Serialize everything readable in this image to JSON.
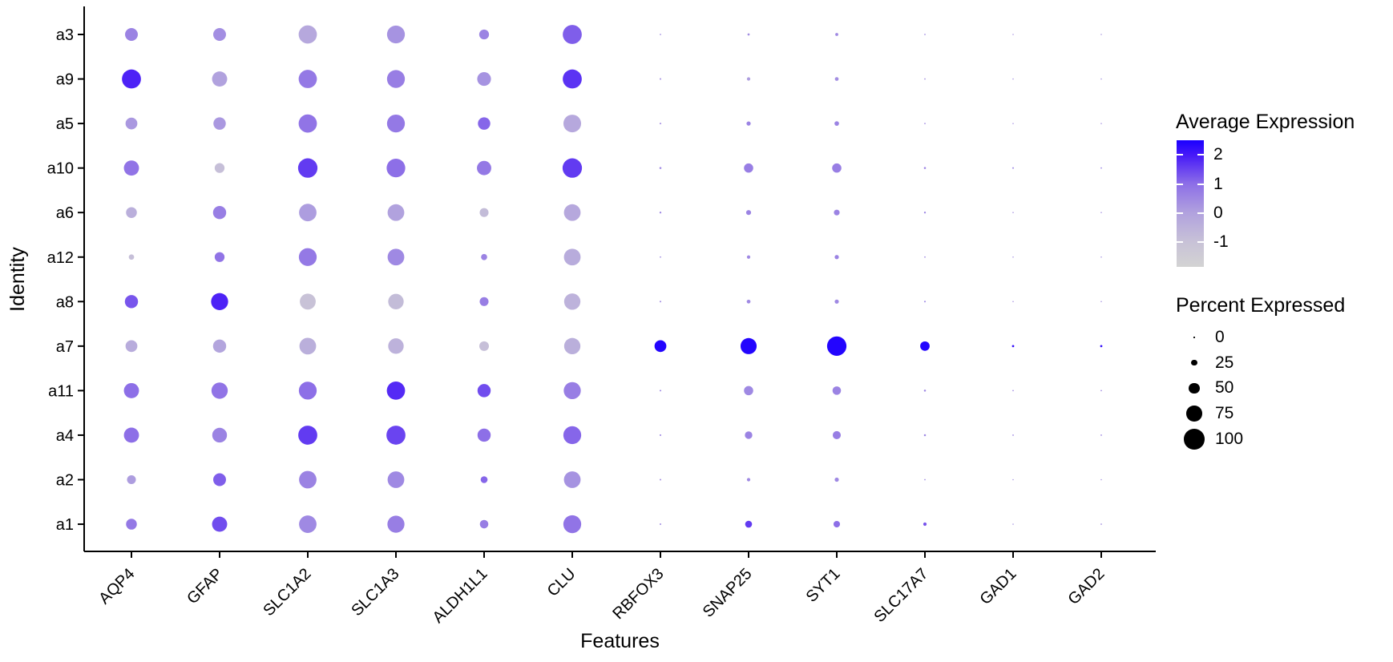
{
  "figure": {
    "background": "#ffffff",
    "text_color": "#000000"
  },
  "chart_data": {
    "type": "dotplot",
    "title": "",
    "xlabel": "Features",
    "ylabel": "Identity",
    "grid": false,
    "features": [
      "AQP4",
      "GFAP",
      "SLC1A2",
      "SLC1A3",
      "ALDH1L1",
      "CLU",
      "RBFOX3",
      "SNAP25",
      "SYT1",
      "SLC17A7",
      "GAD1",
      "GAD2"
    ],
    "identities": [
      "a3",
      "a9",
      "a5",
      "a10",
      "a6",
      "a12",
      "a8",
      "a7",
      "a11",
      "a4",
      "a2",
      "a1"
    ],
    "series": [
      {
        "identity": "a3",
        "pct": [
          60,
          60,
          88,
          86,
          45,
          92,
          2,
          6,
          10,
          2,
          1,
          1
        ],
        "avg_exp": [
          0.6,
          0.4,
          -0.2,
          0.3,
          0.6,
          1.2,
          0.4,
          0.4,
          0.5,
          0.4,
          0.3,
          0.3
        ]
      },
      {
        "identity": "a9",
        "pct": [
          92,
          72,
          88,
          86,
          65,
          92,
          3,
          12,
          14,
          2,
          1,
          1
        ],
        "avg_exp": [
          1.9,
          0.0,
          0.8,
          0.7,
          0.3,
          1.7,
          0.4,
          0.1,
          0.4,
          0.3,
          0.3,
          0.3
        ]
      },
      {
        "identity": "a5",
        "pct": [
          55,
          58,
          88,
          86,
          58,
          85,
          3,
          16,
          18,
          2,
          1,
          1
        ],
        "avg_exp": [
          0.2,
          0.2,
          0.9,
          0.8,
          1.1,
          -0.2,
          0.4,
          0.6,
          0.6,
          0.4,
          0.3,
          0.3
        ]
      },
      {
        "identity": "a10",
        "pct": [
          72,
          45,
          94,
          90,
          68,
          94,
          5,
          42,
          42,
          5,
          3,
          2
        ],
        "avg_exp": [
          0.9,
          -0.9,
          1.6,
          1.0,
          0.8,
          1.6,
          0.5,
          0.7,
          0.7,
          0.6,
          0.5,
          0.5
        ]
      },
      {
        "identity": "a6",
        "pct": [
          50,
          62,
          84,
          80,
          40,
          80,
          4,
          20,
          24,
          4,
          1,
          1
        ],
        "avg_exp": [
          -0.4,
          0.7,
          0.1,
          0.0,
          -0.8,
          -0.2,
          0.5,
          0.6,
          0.6,
          0.5,
          0.3,
          0.3
        ]
      },
      {
        "identity": "a12",
        "pct": [
          22,
          45,
          86,
          80,
          26,
          80,
          2,
          12,
          16,
          2,
          1,
          1
        ],
        "avg_exp": [
          -0.9,
          0.9,
          0.8,
          0.5,
          0.6,
          -0.3,
          0.4,
          0.5,
          0.6,
          0.4,
          0.3,
          0.3
        ]
      },
      {
        "identity": "a8",
        "pct": [
          62,
          82,
          76,
          74,
          40,
          78,
          3,
          14,
          16,
          3,
          1,
          1
        ],
        "avg_exp": [
          1.3,
          1.9,
          -1.0,
          -0.8,
          0.7,
          -0.5,
          0.4,
          0.5,
          0.5,
          0.5,
          0.3,
          0.3
        ]
      },
      {
        "identity": "a7",
        "pct": [
          55,
          62,
          80,
          74,
          44,
          78,
          55,
          77,
          94,
          43,
          6,
          6
        ],
        "avg_exp": [
          -0.3,
          -0.1,
          -0.4,
          -0.5,
          -0.9,
          -0.4,
          2.4,
          2.4,
          2.4,
          2.4,
          2.2,
          2.2
        ]
      },
      {
        "identity": "a11",
        "pct": [
          72,
          78,
          86,
          88,
          62,
          82,
          3,
          42,
          38,
          5,
          2,
          2
        ],
        "avg_exp": [
          1.0,
          0.9,
          1.0,
          1.8,
          1.4,
          0.7,
          0.5,
          0.5,
          0.6,
          0.5,
          0.4,
          0.4
        ]
      },
      {
        "identity": "a4",
        "pct": [
          72,
          70,
          92,
          92,
          62,
          86,
          3,
          33,
          36,
          5,
          2,
          2
        ],
        "avg_exp": [
          1.0,
          0.6,
          1.6,
          1.5,
          1.0,
          1.1,
          0.5,
          0.6,
          0.7,
          0.5,
          0.4,
          0.4
        ]
      },
      {
        "identity": "a2",
        "pct": [
          40,
          60,
          84,
          80,
          30,
          80,
          3,
          12,
          16,
          2,
          1,
          1
        ],
        "avg_exp": [
          0.1,
          1.2,
          0.6,
          0.5,
          1.1,
          0.3,
          0.4,
          0.5,
          0.5,
          0.4,
          0.3,
          0.3
        ]
      },
      {
        "identity": "a1",
        "pct": [
          50,
          72,
          84,
          82,
          38,
          86,
          3,
          30,
          28,
          12,
          1,
          2
        ],
        "avg_exp": [
          0.8,
          1.4,
          0.5,
          0.7,
          0.7,
          0.9,
          0.4,
          1.6,
          1.0,
          1.3,
          0.3,
          0.3
        ]
      }
    ],
    "color_scale": {
      "min": -1.84,
      "max": 2.5,
      "ticks": [
        2,
        1,
        0,
        -1
      ],
      "stops": [
        [
          -1.84,
          "#d3d3d3"
        ],
        [
          -1.0,
          "#c8c2d7"
        ],
        [
          0,
          "#b1a2de"
        ],
        [
          1,
          "#8d6fe7"
        ],
        [
          2,
          "#4619f8"
        ],
        [
          2.5,
          "#1a00ff"
        ]
      ]
    },
    "size_scale": {
      "ticks": [
        0,
        25,
        50,
        75,
        100
      ],
      "dot_color": "#000000"
    }
  },
  "legend": {
    "avg_title": "Average Expression",
    "pct_title": "Percent Expressed"
  }
}
